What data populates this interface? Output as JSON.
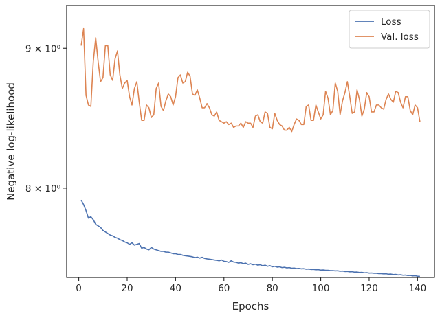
{
  "chart_data": {
    "type": "line",
    "title": "",
    "xlabel": "Epochs",
    "ylabel": "Negative log-likelihood",
    "xlim": [
      -5,
      147
    ],
    "ylim": [
      7.42,
      9.33
    ],
    "yscale": "log",
    "grid": false,
    "legend_position": "top-right",
    "x_ticks": [
      0,
      20,
      40,
      60,
      80,
      100,
      120,
      140
    ],
    "x_tick_labels": [
      "0",
      "20",
      "40",
      "60",
      "80",
      "100",
      "120",
      "140"
    ],
    "y_ticks": [
      8,
      9
    ],
    "y_tick_labels": [
      "8 × 10⁰",
      "9 × 10⁰"
    ],
    "series": [
      {
        "name": "Loss",
        "color": "#4C72B0",
        "x": [
          1,
          2,
          3,
          4,
          5,
          6,
          7,
          8,
          9,
          10,
          11,
          12,
          13,
          14,
          15,
          16,
          17,
          18,
          19,
          20,
          21,
          22,
          23,
          24,
          25,
          26,
          27,
          28,
          29,
          30,
          31,
          32,
          33,
          34,
          35,
          36,
          37,
          38,
          39,
          40,
          41,
          42,
          43,
          44,
          45,
          46,
          47,
          48,
          49,
          50,
          51,
          52,
          53,
          54,
          55,
          56,
          57,
          58,
          59,
          60,
          61,
          62,
          63,
          64,
          65,
          66,
          67,
          68,
          69,
          70,
          71,
          72,
          73,
          74,
          75,
          76,
          77,
          78,
          79,
          80,
          81,
          82,
          83,
          84,
          85,
          86,
          87,
          88,
          89,
          90,
          91,
          92,
          93,
          94,
          95,
          96,
          97,
          98,
          99,
          100,
          101,
          102,
          103,
          104,
          105,
          106,
          107,
          108,
          109,
          110,
          111,
          112,
          113,
          114,
          115,
          116,
          117,
          118,
          119,
          120,
          121,
          122,
          123,
          124,
          125,
          126,
          127,
          128,
          129,
          130,
          131,
          132,
          133,
          134,
          135,
          136,
          137,
          138,
          139,
          140,
          141
        ],
        "values": [
          7.92,
          7.89,
          7.85,
          7.8,
          7.81,
          7.79,
          7.76,
          7.75,
          7.74,
          7.72,
          7.71,
          7.7,
          7.69,
          7.685,
          7.675,
          7.67,
          7.66,
          7.655,
          7.645,
          7.64,
          7.63,
          7.64,
          7.625,
          7.63,
          7.635,
          7.605,
          7.61,
          7.6,
          7.595,
          7.61,
          7.6,
          7.595,
          7.59,
          7.585,
          7.585,
          7.58,
          7.58,
          7.575,
          7.57,
          7.57,
          7.565,
          7.565,
          7.56,
          7.557,
          7.555,
          7.553,
          7.55,
          7.545,
          7.548,
          7.542,
          7.547,
          7.54,
          7.537,
          7.535,
          7.533,
          7.53,
          7.528,
          7.525,
          7.53,
          7.522,
          7.52,
          7.515,
          7.525,
          7.517,
          7.515,
          7.51,
          7.513,
          7.507,
          7.51,
          7.502,
          7.506,
          7.5,
          7.503,
          7.497,
          7.5,
          7.493,
          7.497,
          7.49,
          7.494,
          7.487,
          7.49,
          7.485,
          7.487,
          7.482,
          7.484,
          7.48,
          7.482,
          7.478,
          7.479,
          7.476,
          7.477,
          7.474,
          7.475,
          7.472,
          7.473,
          7.47,
          7.471,
          7.468,
          7.469,
          7.466,
          7.467,
          7.465,
          7.465,
          7.463,
          7.463,
          7.461,
          7.462,
          7.459,
          7.46,
          7.457,
          7.458,
          7.455,
          7.456,
          7.453,
          7.454,
          7.451,
          7.452,
          7.449,
          7.45,
          7.447,
          7.448,
          7.446,
          7.446,
          7.444,
          7.444,
          7.442,
          7.443,
          7.44,
          7.441,
          7.438,
          7.439,
          7.436,
          7.437,
          7.434,
          7.435,
          7.432,
          7.433,
          7.43,
          7.431,
          7.428,
          7.427
        ]
      },
      {
        "name": "Val. loss",
        "color": "#DD8452",
        "x": [
          1,
          2,
          3,
          4,
          5,
          6,
          7,
          8,
          9,
          10,
          11,
          12,
          13,
          14,
          15,
          16,
          17,
          18,
          19,
          20,
          21,
          22,
          23,
          24,
          25,
          26,
          27,
          28,
          29,
          30,
          31,
          32,
          33,
          34,
          35,
          36,
          37,
          38,
          39,
          40,
          41,
          42,
          43,
          44,
          45,
          46,
          47,
          48,
          49,
          50,
          51,
          52,
          53,
          54,
          55,
          56,
          57,
          58,
          59,
          60,
          61,
          62,
          63,
          64,
          65,
          66,
          67,
          68,
          69,
          70,
          71,
          72,
          73,
          74,
          75,
          76,
          77,
          78,
          79,
          80,
          81,
          82,
          83,
          84,
          85,
          86,
          87,
          88,
          89,
          90,
          91,
          92,
          93,
          94,
          95,
          96,
          97,
          98,
          99,
          100,
          101,
          102,
          103,
          104,
          105,
          106,
          107,
          108,
          109,
          110,
          111,
          112,
          113,
          114,
          115,
          116,
          117,
          118,
          119,
          120,
          121,
          122,
          123,
          124,
          125,
          126,
          127,
          128,
          129,
          130,
          131,
          132,
          133,
          134,
          135,
          136,
          137,
          138,
          139,
          140,
          141
        ],
        "values": [
          9.02,
          9.15,
          8.65,
          8.58,
          8.57,
          8.9,
          9.08,
          8.9,
          8.75,
          8.78,
          9.02,
          9.02,
          8.8,
          8.76,
          8.92,
          8.98,
          8.8,
          8.7,
          8.74,
          8.76,
          8.64,
          8.58,
          8.7,
          8.75,
          8.6,
          8.47,
          8.47,
          8.58,
          8.56,
          8.49,
          8.51,
          8.7,
          8.74,
          8.57,
          8.54,
          8.61,
          8.66,
          8.64,
          8.58,
          8.64,
          8.78,
          8.8,
          8.74,
          8.75,
          8.82,
          8.79,
          8.66,
          8.65,
          8.69,
          8.63,
          8.56,
          8.56,
          8.59,
          8.56,
          8.51,
          8.5,
          8.53,
          8.47,
          8.46,
          8.45,
          8.46,
          8.44,
          8.45,
          8.42,
          8.43,
          8.43,
          8.45,
          8.42,
          8.46,
          8.45,
          8.45,
          8.42,
          8.5,
          8.51,
          8.46,
          8.45,
          8.53,
          8.52,
          8.42,
          8.41,
          8.52,
          8.47,
          8.44,
          8.43,
          8.4,
          8.4,
          8.42,
          8.39,
          8.44,
          8.48,
          8.47,
          8.44,
          8.44,
          8.57,
          8.58,
          8.47,
          8.47,
          8.58,
          8.53,
          8.48,
          8.51,
          8.68,
          8.63,
          8.51,
          8.54,
          8.74,
          8.68,
          8.51,
          8.61,
          8.67,
          8.75,
          8.64,
          8.52,
          8.53,
          8.69,
          8.62,
          8.5,
          8.55,
          8.67,
          8.64,
          8.53,
          8.53,
          8.58,
          8.58,
          8.56,
          8.55,
          8.62,
          8.66,
          8.62,
          8.6,
          8.68,
          8.67,
          8.6,
          8.56,
          8.64,
          8.64,
          8.54,
          8.51,
          8.58,
          8.56,
          8.46
        ]
      }
    ]
  }
}
